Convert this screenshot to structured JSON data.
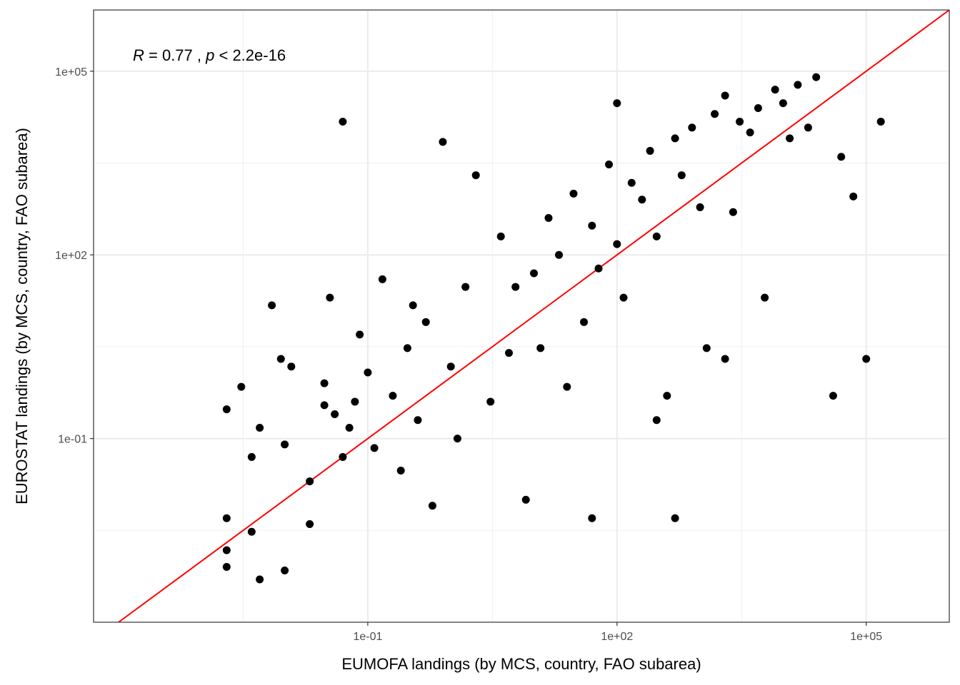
{
  "chart_data": {
    "type": "scatter",
    "xlabel": "EUMOFA landings (by MCS, country, FAO subarea)",
    "ylabel": "EUROSTAT landings (by MCS, country, FAO subarea)",
    "x_scale": "log10",
    "y_scale": "log10",
    "xlim": [
      5e-05,
      1000000
    ],
    "ylim": [
      0.0001,
      1000000
    ],
    "x_ticks": [
      {
        "value": 0.1,
        "label": "1e-01"
      },
      {
        "value": 100,
        "label": "1e+02"
      },
      {
        "value": 100000,
        "label": "1e+05"
      }
    ],
    "y_ticks": [
      {
        "value": 0.1,
        "label": "1e-01"
      },
      {
        "value": 100,
        "label": "1e+02"
      },
      {
        "value": 100000,
        "label": "1e+05"
      }
    ],
    "grid": true,
    "annotation": {
      "r_symbol": "R",
      "r_text": " = 0.77 , ",
      "p_symbol": "p",
      "p_text": " < 2.2e-16"
    },
    "reference_line": {
      "type": "identity",
      "slope": 1,
      "intercept": 0,
      "color": "#ff0000"
    },
    "point_color": "#000000",
    "points": [
      [
        0.002,
        0.005
      ],
      [
        0.002,
        0.3
      ],
      [
        0.002,
        0.0015
      ],
      [
        0.002,
        0.0008
      ],
      [
        0.003,
        0.7
      ],
      [
        0.004,
        0.05
      ],
      [
        0.004,
        0.003
      ],
      [
        0.005,
        0.0005
      ],
      [
        0.005,
        0.15
      ],
      [
        0.007,
        15
      ],
      [
        0.009,
        2
      ],
      [
        0.01,
        0.08
      ],
      [
        0.01,
        0.0007
      ],
      [
        0.012,
        1.5
      ],
      [
        0.02,
        0.004
      ],
      [
        0.02,
        0.02
      ],
      [
        0.03,
        0.8
      ],
      [
        0.03,
        0.35
      ],
      [
        0.035,
        20
      ],
      [
        0.04,
        0.25
      ],
      [
        0.05,
        15000
      ],
      [
        0.05,
        0.05
      ],
      [
        0.06,
        0.15
      ],
      [
        0.07,
        0.4
      ],
      [
        0.08,
        5
      ],
      [
        0.1,
        1.2
      ],
      [
        0.12,
        0.07
      ],
      [
        0.15,
        40
      ],
      [
        0.2,
        0.5
      ],
      [
        0.25,
        0.03
      ],
      [
        0.3,
        3
      ],
      [
        0.35,
        15
      ],
      [
        0.4,
        0.2
      ],
      [
        0.5,
        8
      ],
      [
        0.6,
        0.008
      ],
      [
        0.8,
        7000
      ],
      [
        1,
        1.5
      ],
      [
        1.2,
        0.1
      ],
      [
        1.5,
        30
      ],
      [
        2,
        2000
      ],
      [
        3,
        0.4
      ],
      [
        4,
        200
      ],
      [
        5,
        2.5
      ],
      [
        6,
        30
      ],
      [
        8,
        0.01
      ],
      [
        10,
        50
      ],
      [
        12,
        3
      ],
      [
        15,
        400
      ],
      [
        20,
        100
      ],
      [
        25,
        0.7
      ],
      [
        30,
        1000
      ],
      [
        40,
        8
      ],
      [
        50,
        300
      ],
      [
        60,
        60
      ],
      [
        80,
        3000
      ],
      [
        100,
        150
      ],
      [
        120,
        20
      ],
      [
        150,
        1500
      ],
      [
        200,
        800
      ],
      [
        250,
        5000
      ],
      [
        300,
        200
      ],
      [
        400,
        0.5
      ],
      [
        500,
        8000
      ],
      [
        600,
        2000
      ],
      [
        800,
        12000
      ],
      [
        1000,
        600
      ],
      [
        1200,
        3
      ],
      [
        1500,
        20000
      ],
      [
        2000,
        40000
      ],
      [
        2500,
        500
      ],
      [
        3000,
        15000
      ],
      [
        4000,
        10000
      ],
      [
        5000,
        25000
      ],
      [
        6000,
        20
      ],
      [
        8000,
        50000
      ],
      [
        10000,
        30000
      ],
      [
        12000,
        8000
      ],
      [
        15000,
        60000
      ],
      [
        20000,
        12000
      ],
      [
        25000,
        80000
      ],
      [
        40000,
        0.5
      ],
      [
        50000,
        4000
      ],
      [
        70000,
        900
      ],
      [
        100000,
        2
      ],
      [
        150000,
        15000
      ],
      [
        2000,
        2
      ],
      [
        500,
        0.005
      ],
      [
        100,
        30000
      ],
      [
        50,
        0.005
      ],
      [
        300,
        0.2
      ]
    ]
  }
}
